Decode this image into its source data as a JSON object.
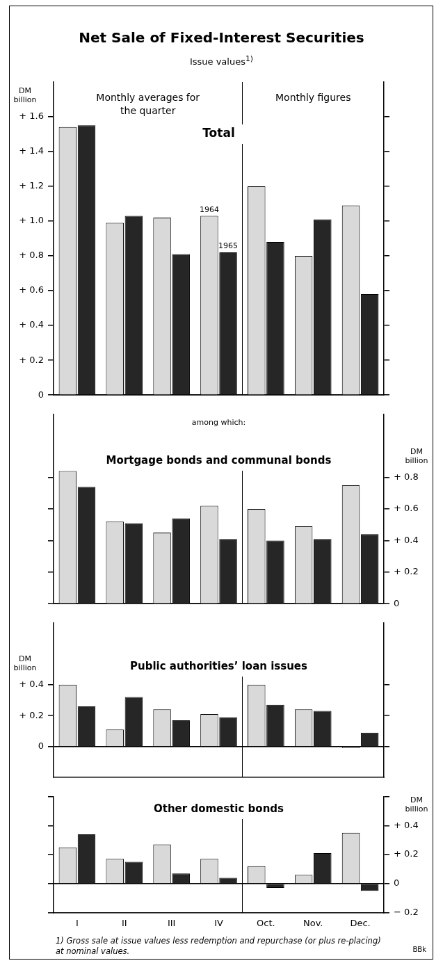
{
  "chart_data": [
    {
      "type": "bar",
      "title": "Net Sale of Fixed-Interest Securities",
      "subtitle": "Issue values$^{1)}$",
      "ylabel": "DM billion",
      "annotations": [
        "Monthly averages for the quarter",
        "Monthly figures",
        "Total"
      ],
      "categories": [
        null,
        null,
        null,
        null,
        null,
        null,
        null
      ],
      "series": [
        {
          "name": "1964",
          "color": "#d9d9d9",
          "values": [
            1.54,
            0.99,
            1.02,
            1.03,
            1.2,
            0.8,
            1.09
          ]
        },
        {
          "name": "1965",
          "color": "#262626",
          "values": [
            1.55,
            1.03,
            0.81,
            0.82,
            0.88,
            1.01,
            0.58
          ]
        }
      ],
      "ylim": [
        0,
        1.8
      ],
      "yticks": [
        {
          "value": 0,
          "label": "0"
        },
        {
          "value": 0.2,
          "label": "+ 0.2"
        },
        {
          "value": 0.4,
          "label": "+ 0.4"
        },
        {
          "value": 0.6,
          "label": "+ 0.6"
        },
        {
          "value": 0.8,
          "label": "+ 0.8"
        },
        {
          "value": 1.0,
          "label": "+ 1.0"
        },
        {
          "value": 1.2,
          "label": "+ 1.2"
        },
        {
          "value": 1.4,
          "label": "+ 1.4"
        },
        {
          "value": 1.6,
          "label": "+ 1.6"
        }
      ],
      "tick_labels": "y",
      "legend": false
    },
    {
      "type": "bar",
      "title": "Mortgage bonds and communal bonds",
      "subtitle": "among which:",
      "ylabel": "DM billion",
      "categories": [
        null,
        null,
        null,
        null,
        null,
        null,
        null
      ],
      "series": [
        {
          "color": "#d9d9d9",
          "values": [
            0.84,
            0.52,
            0.45,
            0.62,
            0.6,
            0.49,
            0.75
          ]
        },
        {
          "color": "#262626",
          "values": [
            0.74,
            0.51,
            0.54,
            0.41,
            0.4,
            0.41,
            0.44
          ]
        }
      ],
      "ylim": [
        0,
        1.2
      ],
      "yticks": [
        {
          "value": 0,
          "label": "0"
        },
        {
          "value": 0.2,
          "label": "+ 0.2"
        },
        {
          "value": 0.4,
          "label": "+ 0.4"
        },
        {
          "value": 0.6,
          "label": "+ 0.6"
        },
        {
          "value": 0.8,
          "label": "+ 0.8"
        }
      ],
      "tick_labels": "y",
      "legend": false
    },
    {
      "type": "bar",
      "title": "Public authorities’ loan issues",
      "ylabel": "DM billion",
      "categories": [
        null,
        null,
        null,
        null,
        null,
        null,
        null
      ],
      "series": [
        {
          "color": "#d9d9d9",
          "values": [
            0.4,
            0.11,
            0.24,
            0.21,
            0.4,
            0.24,
            -0.01
          ]
        },
        {
          "color": "#262626",
          "values": [
            0.26,
            0.32,
            0.17,
            0.19,
            0.27,
            0.23,
            0.09
          ]
        }
      ],
      "ylim": [
        -0.2,
        0.8
      ],
      "yticks": [
        {
          "value": 0,
          "label": "0"
        },
        {
          "value": 0.2,
          "label": "+ 0.2"
        },
        {
          "value": 0.4,
          "label": "+ 0.4"
        }
      ],
      "tick_labels": "y",
      "legend": false
    },
    {
      "type": "bar",
      "title": "Other domestic bonds",
      "y2label": "DM billion",
      "annotations": [
        "1) Gross sale at issue values less redemption and repurchase (or plus re-placing) at nominal values.",
        "BBk"
      ],
      "categories": [
        "I",
        "II",
        "III",
        "IV",
        "Oct.",
        "Nov.",
        "Dec."
      ],
      "series": [
        {
          "color": "#d9d9d9",
          "axis": "y2",
          "values": [
            0.25,
            0.17,
            0.27,
            0.17,
            0.12,
            0.06,
            0.35
          ]
        },
        {
          "color": "#262626",
          "axis": "y2",
          "values": [
            0.34,
            0.15,
            0.07,
            0.04,
            -0.03,
            0.21,
            -0.05
          ]
        }
      ],
      "y2lim": [
        -0.2,
        0.6
      ],
      "y2ticks": [
        {
          "value": -0.2,
          "label": "− 0.2"
        },
        {
          "value": 0,
          "label": "0"
        },
        {
          "value": 0.2,
          "label": "+ 0.2"
        },
        {
          "value": 0.4,
          "label": "+ 0.4"
        },
        {
          "value": 0.6,
          "label": null
        }
      ],
      "legend": false
    }
  ]
}
